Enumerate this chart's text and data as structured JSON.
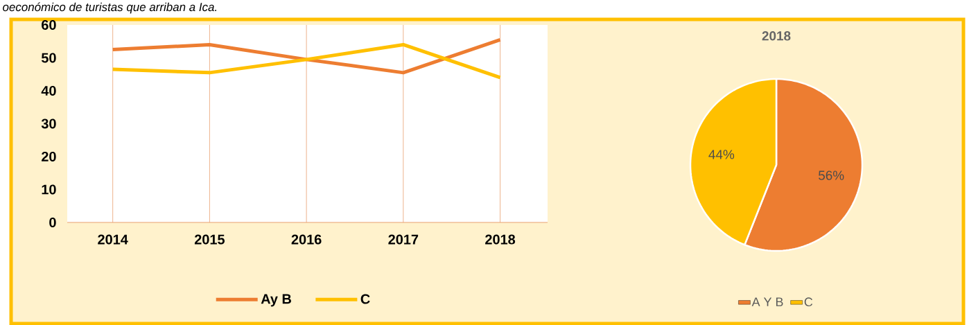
{
  "chart_data": [
    {
      "type": "line",
      "annotations": [
        "oeconómico de turistas que arriban a Ica."
      ],
      "categories": [
        "2014",
        "2015",
        "2016",
        "2017",
        "2018"
      ],
      "series": [
        {
          "name": "Ay B",
          "color": "#ed7d31",
          "values": [
            52.5,
            54,
            49.5,
            45.5,
            55.5
          ]
        },
        {
          "name": "C",
          "color": "#ffc000",
          "values": [
            46.5,
            45.5,
            49.5,
            54,
            44
          ]
        }
      ],
      "ylim": [
        0,
        60
      ],
      "yticks": [
        0,
        10,
        20,
        30,
        40,
        50,
        60
      ],
      "grid": "x",
      "legend": "bottom"
    },
    {
      "type": "pie",
      "title": "2018",
      "categories": [
        "A Y B",
        "C"
      ],
      "values": [
        56,
        44
      ],
      "colors": [
        "#ed7d31",
        "#ffc000"
      ],
      "value_labels": [
        "56%",
        "44%"
      ],
      "legend": "bottom"
    }
  ]
}
